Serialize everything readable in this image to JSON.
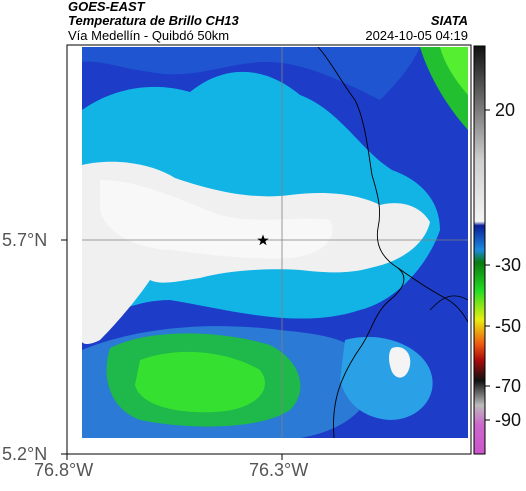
{
  "header": {
    "source": "GOES-EAST",
    "product": "Temperatura de Brillo CH13",
    "region": "Vía Medellín - Quibdó 50km",
    "agency": "SIATA",
    "datetime": "2024-10-05 04:19"
  },
  "axes": {
    "x_ticks": [
      "76.8°W",
      "76.3°W"
    ],
    "y_ticks": [
      "5.7°N",
      "5.2°N"
    ]
  },
  "colorbar": {
    "ticks": [
      "20",
      "-30",
      "-50",
      "-70",
      "-90"
    ]
  },
  "map": {
    "marker_icon": "star-icon",
    "colors": {
      "cold_cloud": "#f2f2f2",
      "deep_blue": "#1d3cc8",
      "cyan": "#12b4e6",
      "green": "#22dd22",
      "border_line": "#000000"
    }
  }
}
